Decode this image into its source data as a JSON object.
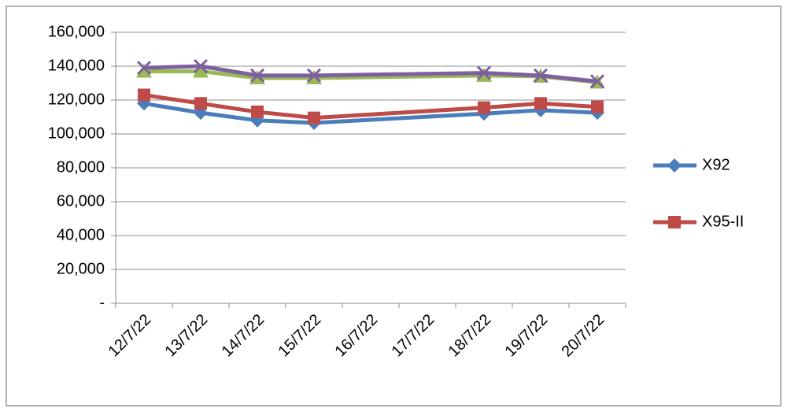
{
  "chart_data": {
    "type": "line",
    "categories": [
      "12/7/22",
      "13/7/22",
      "14/7/22",
      "15/7/22",
      "16/7/22",
      "17/7/22",
      "18/7/22",
      "19/7/22",
      "20/7/22"
    ],
    "series": [
      {
        "name": "X92",
        "color": "#4a7ebb",
        "marker": "diamond",
        "values": [
          118000,
          112500,
          108000,
          106500,
          null,
          null,
          112000,
          114000,
          112500
        ]
      },
      {
        "name": "X95-II",
        "color": "#be4b48",
        "marker": "square",
        "values": [
          123000,
          118000,
          113000,
          109500,
          null,
          null,
          115500,
          118000,
          116000
        ]
      },
      {
        "color": "#98b954",
        "marker": "triangle",
        "values": [
          137000,
          137000,
          133000,
          133000,
          null,
          null,
          134500,
          134000,
          130500
        ]
      },
      {
        "color": "#7d60a0",
        "marker": "x",
        "values": [
          139000,
          140000,
          134500,
          134500,
          null,
          null,
          136000,
          134500,
          131000
        ]
      }
    ],
    "ylim": [
      0,
      160000
    ],
    "yticks": [
      {
        "value": 0,
        "label": "-"
      },
      {
        "value": 20000,
        "label": "20,000"
      },
      {
        "value": 40000,
        "label": "40,000"
      },
      {
        "value": 60000,
        "label": "60,000"
      },
      {
        "value": 80000,
        "label": "80,000"
      },
      {
        "value": 100000,
        "label": "100,000"
      },
      {
        "value": 120000,
        "label": "120,000"
      },
      {
        "value": 140000,
        "label": "140,000"
      },
      {
        "value": 160000,
        "label": "160,000"
      }
    ],
    "grid": true,
    "legend": "right"
  }
}
